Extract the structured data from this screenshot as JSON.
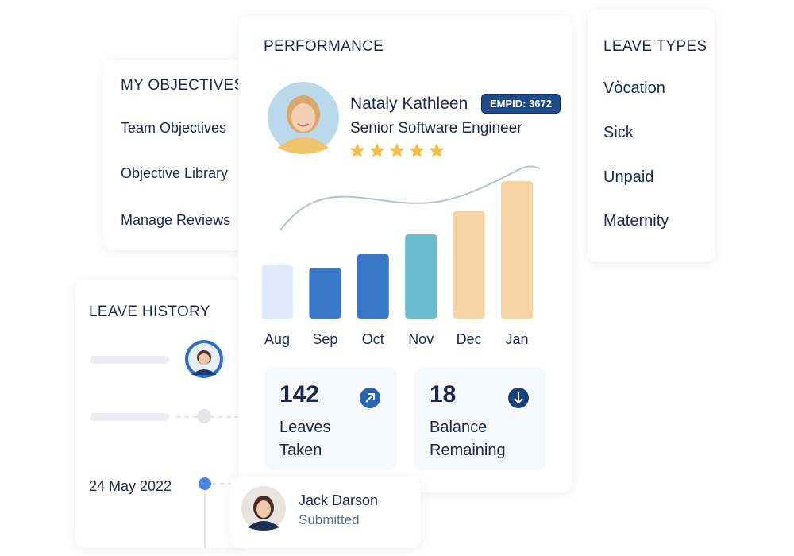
{
  "objectives": {
    "title": "MY OBJECTIVES",
    "items": [
      "Team Objectives",
      "Objective Library",
      "Manage Reviews"
    ]
  },
  "performance": {
    "title": "PERFORMANCE",
    "profile": {
      "name": "Nataly Kathleen",
      "badge": "EMPID: 3672",
      "role": "Senior Software Engineer",
      "rating": 5
    },
    "chart_data": {
      "type": "bar",
      "categories": [
        "Aug",
        "Sep",
        "Oct",
        "Nov",
        "Dec",
        "Jan"
      ],
      "values": [
        67,
        64,
        81,
        106,
        135,
        173
      ],
      "colors": [
        "#dde8f8",
        "#3a78c9",
        "#3a78c9",
        "#6bbccc",
        "#f5d3a3",
        "#f5d3a3"
      ]
    },
    "stats": [
      {
        "value": 142,
        "label": "Leaves Taken"
      },
      {
        "value": 18,
        "label": "Balance Remaining"
      }
    ]
  },
  "leave_types": {
    "title": "LEAVE TYPES",
    "items": [
      "Vòcation",
      "Sick",
      "Unpaid",
      "Maternity"
    ]
  },
  "leave_history": {
    "title": "LEAVE HISTORY",
    "entries": [
      {
        "date": "24 May 2022",
        "name": "Jack Darson",
        "status": "Submitted"
      }
    ]
  }
}
